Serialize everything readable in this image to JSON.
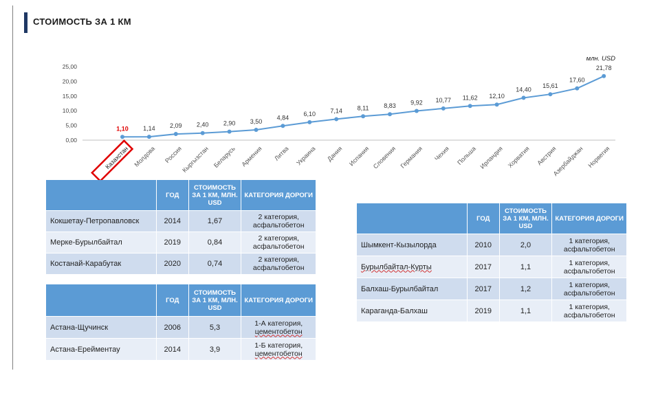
{
  "page": {
    "title": "СТОИМОСТЬ ЗА 1 КМ"
  },
  "colors": {
    "series": "#5b9bd5",
    "highlight": "#e00000",
    "header": "#5b9bd5",
    "row_odd": "#cfdcee",
    "row_even": "#e8eef7",
    "title_bar": "#1f3864"
  },
  "chart_data": {
    "type": "line",
    "unit_label": "млн. USD",
    "categories": [
      "Казахстан",
      "Молдова",
      "Россия",
      "Кыргызстан",
      "Беларусь",
      "Армения",
      "Литва",
      "Украина",
      "Дания",
      "Испания",
      "Словения",
      "Германия",
      "Чехия",
      "Польша",
      "Ирландия",
      "Хорватия",
      "Австрия",
      "Азербайджан",
      "Норвегия"
    ],
    "values": [
      1.1,
      1.14,
      2.09,
      2.4,
      2.9,
      3.5,
      4.84,
      6.1,
      7.14,
      8.11,
      8.83,
      9.92,
      10.77,
      11.62,
      12.1,
      14.4,
      15.61,
      17.6,
      21.78
    ],
    "value_labels": [
      "1,10",
      "1,14",
      "2,09",
      "2,40",
      "2,90",
      "3,50",
      "4,84",
      "6,10",
      "7,14",
      "8,11",
      "8,83",
      "9,92",
      "10,77",
      "11,62",
      "12,10",
      "14,40",
      "15,61",
      "17,60",
      "21,78"
    ],
    "highlight_category": "Казахстан",
    "yticks": [
      "0,00",
      "5,00",
      "10,00",
      "15,00",
      "20,00",
      "25,00"
    ],
    "ylim": [
      0,
      25
    ],
    "grid": false,
    "legend": "none"
  },
  "tables": {
    "headers": {
      "blank": "",
      "year": "ГОД",
      "cost": "СТОИМОСТЬ ЗА 1 КМ, МЛН. USD",
      "category": "КАТЕГОРИЯ ДОРОГИ"
    },
    "table1": [
      {
        "name": "Кокшетау-Петропавловск",
        "year": "2014",
        "cost": "1,67",
        "cat1": "2 категория,",
        "cat2": "асфальтобетон"
      },
      {
        "name": "Мерке-Бурылбайтал",
        "year": "2019",
        "cost": "0,84",
        "cat1": "2 категория,",
        "cat2": "асфальтобетон"
      },
      {
        "name": "Костанай-Карабутак",
        "year": "2020",
        "cost": "0,74",
        "cat1": "2 категория,",
        "cat2": "асфальтобетон"
      }
    ],
    "table2": [
      {
        "name": "Астана-Щучинск",
        "year": "2006",
        "cost": "5,3",
        "cat1": "1-А категория,",
        "cat2": "цементобетон"
      },
      {
        "name": "Астана-Ерейментау",
        "year": "2014",
        "cost": "3,9",
        "cat1": "1-Б категория,",
        "cat2": "цементобетон"
      }
    ],
    "table3": [
      {
        "name": "Шымкент-Кызылорда",
        "year": "2010",
        "cost": "2,0",
        "cat1": "1 категория,",
        "cat2": "асфальтобетон"
      },
      {
        "name": "Бурылбайтал-Курты",
        "year": "2017",
        "cost": "1,1",
        "cat1": "1 категория,",
        "cat2": "асфальтобетон"
      },
      {
        "name": "Балхаш-Бурылбайтал",
        "year": "2017",
        "cost": "1,2",
        "cat1": "1 категория,",
        "cat2": "асфальтобетон"
      },
      {
        "name": "Караганда-Балхаш",
        "year": "2019",
        "cost": "1,1",
        "cat1": "1 категория,",
        "cat2": "асфальтобетон"
      }
    ]
  }
}
